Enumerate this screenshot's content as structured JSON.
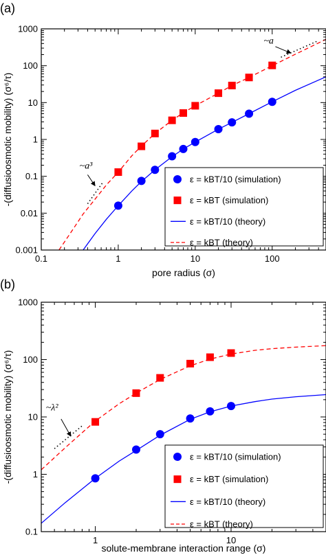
{
  "chart_data": [
    {
      "type": "line",
      "panel_label": "(a)",
      "xlabel": "pore radius  (σ)",
      "ylabel": "-(diffusioosmotic mobility)  (σ⁶/τ)",
      "xscale": "log",
      "yscale": "log",
      "xlim": [
        0.1,
        500
      ],
      "ylim": [
        0.001,
        1000
      ],
      "xticks": [
        {
          "value": 0.1,
          "label": "0.1"
        },
        {
          "value": 1,
          "label": "1"
        },
        {
          "value": 10,
          "label": "10"
        },
        {
          "value": 100,
          "label": "100"
        }
      ],
      "yticks": [
        {
          "value": 0.001,
          "label": "0.001"
        },
        {
          "value": 0.01,
          "label": "0.01"
        },
        {
          "value": 0.1,
          "label": "0.1"
        },
        {
          "value": 1,
          "label": "1"
        },
        {
          "value": 10,
          "label": "10"
        },
        {
          "value": 100,
          "label": "100"
        },
        {
          "value": 1000,
          "label": "1000"
        }
      ],
      "legend_position": "bottom-right",
      "series": [
        {
          "name": "ε = kBT/10 (simulation)",
          "kind": "scatter",
          "marker": "circle",
          "color": "#0000ff",
          "x": [
            1,
            2,
            3,
            5,
            7,
            10,
            20,
            30,
            50,
            100
          ],
          "y": [
            0.016,
            0.075,
            0.15,
            0.35,
            0.55,
            0.85,
            1.9,
            2.9,
            5.0,
            10.5
          ]
        },
        {
          "name": "ε = kBT (simulation)",
          "kind": "scatter",
          "marker": "square",
          "color": "#ff0000",
          "x": [
            1,
            2,
            3,
            5,
            7,
            10,
            20,
            30,
            50,
            100
          ],
          "y": [
            0.13,
            0.65,
            1.45,
            3.3,
            5.2,
            8.2,
            18,
            29,
            48,
            102
          ]
        },
        {
          "name": "ε = kBT/10 (theory)",
          "kind": "line",
          "dash": "solid",
          "color": "#0000ff",
          "x": [
            0.35,
            0.5,
            0.7,
            1,
            1.5,
            2,
            3,
            5,
            7,
            10,
            20,
            30,
            50,
            100,
            200,
            500
          ],
          "y": [
            0.001,
            0.0028,
            0.0068,
            0.016,
            0.04,
            0.072,
            0.15,
            0.34,
            0.55,
            0.85,
            1.9,
            2.9,
            5.0,
            10.5,
            21.5,
            50
          ]
        },
        {
          "name": "ε = kBT (theory)",
          "kind": "line",
          "dash": "dashed",
          "color": "#ff0000",
          "x": [
            0.17,
            0.25,
            0.35,
            0.5,
            0.7,
            1,
            1.5,
            2,
            3,
            5,
            7,
            10,
            20,
            30,
            50,
            100,
            200,
            500
          ],
          "y": [
            0.001,
            0.0033,
            0.0095,
            0.024,
            0.058,
            0.13,
            0.36,
            0.66,
            1.45,
            3.3,
            5.3,
            8.2,
            18,
            29,
            48,
            100,
            205,
            520
          ]
        }
      ],
      "annotations": [
        {
          "text": "~a",
          "x": 90,
          "y": 400
        },
        {
          "text": "~a³",
          "x": 0.38,
          "y": 0.16
        }
      ]
    },
    {
      "type": "line",
      "panel_label": "(b)",
      "xlabel": "solute-membrane interaction range  (σ)",
      "ylabel": "-(diffusioosmotic mobility)  (σ⁶/τ)",
      "xscale": "log",
      "yscale": "log",
      "xlim": [
        0.4,
        50
      ],
      "ylim": [
        0.1,
        1000
      ],
      "xticks": [
        {
          "value": 1,
          "label": "1"
        },
        {
          "value": 10,
          "label": "10"
        }
      ],
      "yticks": [
        {
          "value": 0.1,
          "label": "0.1"
        },
        {
          "value": 1,
          "label": "1"
        },
        {
          "value": 10,
          "label": "10"
        },
        {
          "value": 100,
          "label": "100"
        },
        {
          "value": 1000,
          "label": "1000"
        }
      ],
      "legend_position": "bottom-right",
      "series": [
        {
          "name": "ε = kBT/10 (simulation)",
          "kind": "scatter",
          "marker": "circle",
          "color": "#0000ff",
          "x": [
            1,
            2,
            3,
            5,
            7,
            10
          ],
          "y": [
            0.85,
            2.7,
            5.0,
            9.4,
            12.5,
            15.5
          ]
        },
        {
          "name": "ε = kBT (simulation)",
          "kind": "scatter",
          "marker": "square",
          "color": "#ff0000",
          "x": [
            1,
            2,
            3,
            5,
            7,
            10
          ],
          "y": [
            8.2,
            26,
            48,
            85,
            110,
            130
          ]
        },
        {
          "name": "ε = kBT/10 (theory)",
          "kind": "line",
          "dash": "solid",
          "color": "#0000ff",
          "x": [
            0.4,
            0.6,
            1,
            1.5,
            2,
            3,
            5,
            7,
            10,
            15,
            20,
            30,
            50
          ],
          "y": [
            0.14,
            0.32,
            0.85,
            1.7,
            2.6,
            4.8,
            9.1,
            12.3,
            15.5,
            18.5,
            20.5,
            22.5,
            24.5
          ]
        },
        {
          "name": "ε = kBT (theory)",
          "kind": "line",
          "dash": "dashed",
          "color": "#ff0000",
          "x": [
            0.4,
            0.6,
            1,
            1.5,
            2,
            3,
            5,
            7,
            10,
            15,
            20,
            30,
            50
          ],
          "y": [
            1.2,
            2.9,
            8.5,
            17,
            26,
            45,
            78,
            102,
            125,
            145,
            155,
            165,
            175
          ]
        }
      ],
      "annotations": [
        {
          "text": "~λ²",
          "x": 0.48,
          "y": 13
        }
      ]
    }
  ]
}
